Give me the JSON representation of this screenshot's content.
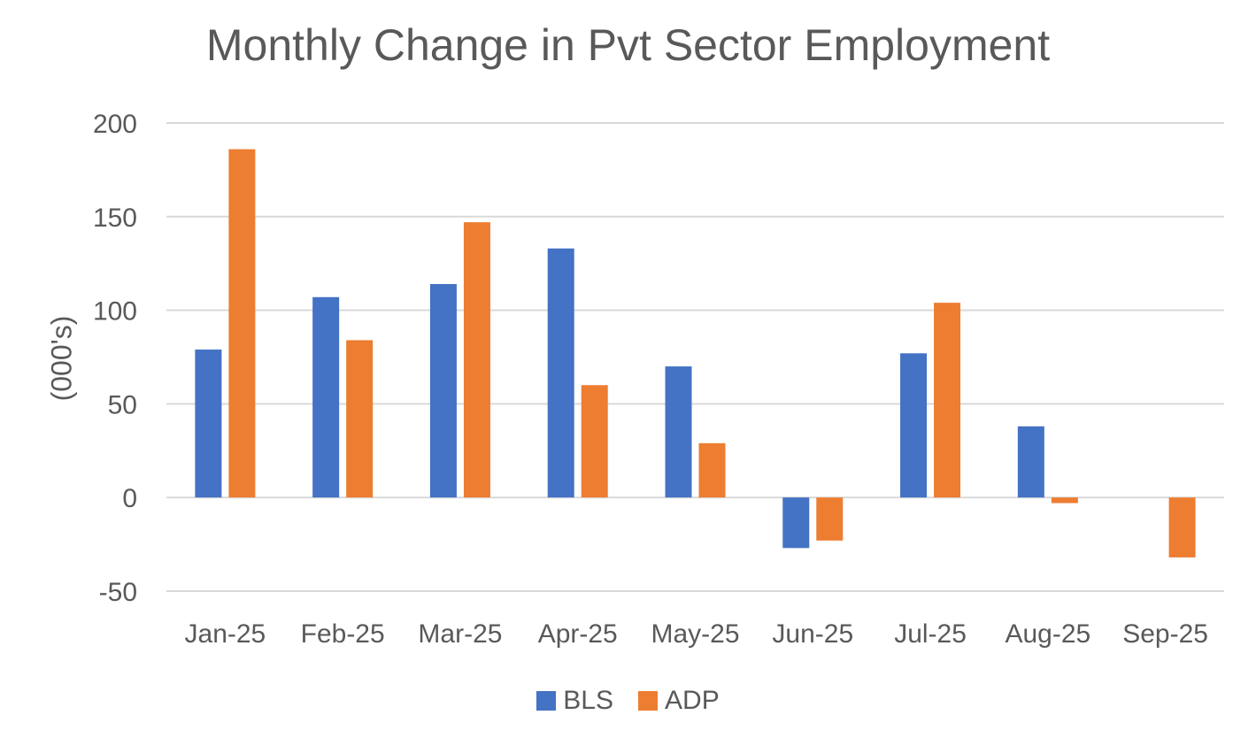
{
  "chart_data": {
    "type": "bar",
    "title": "Monthly Change in Pvt Sector Employment",
    "xlabel": "",
    "ylabel": "(000's)",
    "ylim": [
      -50,
      200
    ],
    "yticks": [
      200,
      150,
      100,
      50,
      0,
      -50
    ],
    "grid": true,
    "legend_position": "bottom",
    "categories": [
      "Jan-25",
      "Feb-25",
      "Mar-25",
      "Apr-25",
      "May-25",
      "Jun-25",
      "Jul-25",
      "Aug-25",
      "Sep-25"
    ],
    "series": [
      {
        "name": "BLS",
        "color": "#4472c4",
        "values": [
          79,
          107,
          114,
          133,
          70,
          -27,
          77,
          38,
          null
        ]
      },
      {
        "name": "ADP",
        "color": "#ed7d31",
        "values": [
          186,
          84,
          147,
          60,
          29,
          -23,
          104,
          -3,
          -32
        ]
      }
    ]
  }
}
